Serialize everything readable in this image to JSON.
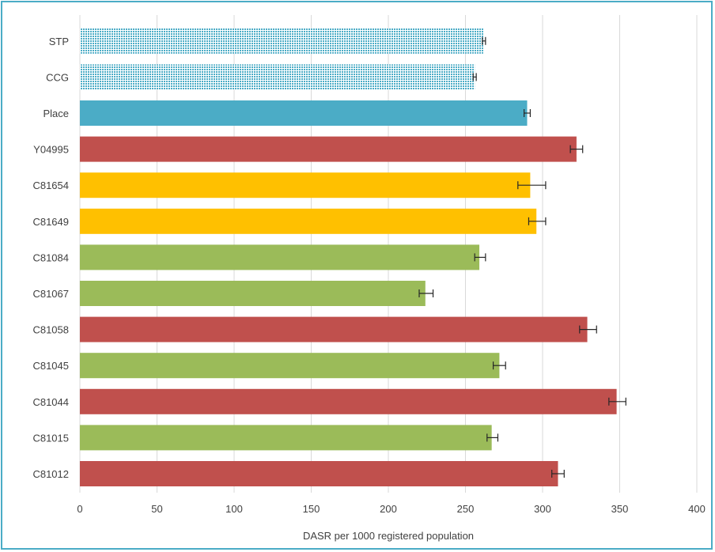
{
  "chart_data": {
    "type": "bar",
    "orientation": "horizontal",
    "title": "",
    "xlabel": "DASR per 1000 registered population",
    "ylabel": "",
    "xlim": [
      0,
      400
    ],
    "xticks": [
      0,
      50,
      100,
      150,
      200,
      250,
      300,
      350,
      400
    ],
    "grid": "vertical",
    "legend": "none",
    "colors": {
      "benchmark": "#4bacc6",
      "high": "#c0504d",
      "similar": "#ffc000",
      "low": "#9bbb59",
      "error_bar": "#262626",
      "gridline": "#d9d9d9"
    },
    "categories": [
      "STP",
      "CCG",
      "Place",
      "Y04995",
      "C81654",
      "C81649",
      "C81084",
      "C81067",
      "C81058",
      "C81045",
      "C81044",
      "C81015",
      "C81012"
    ],
    "values": [
      262,
      256,
      290,
      322,
      292,
      296,
      259,
      224,
      329,
      272,
      348,
      267,
      310
    ],
    "error_low": [
      261,
      255,
      288,
      318,
      284,
      291,
      256,
      220,
      324,
      268,
      343,
      264,
      306
    ],
    "error_high": [
      263,
      257,
      292,
      326,
      302,
      302,
      263,
      229,
      335,
      276,
      354,
      271,
      314
    ],
    "bar_style": [
      "dotted-benchmark",
      "dotted-benchmark",
      "benchmark",
      "high",
      "similar",
      "similar",
      "low",
      "low",
      "high",
      "low",
      "high",
      "low",
      "high"
    ]
  }
}
